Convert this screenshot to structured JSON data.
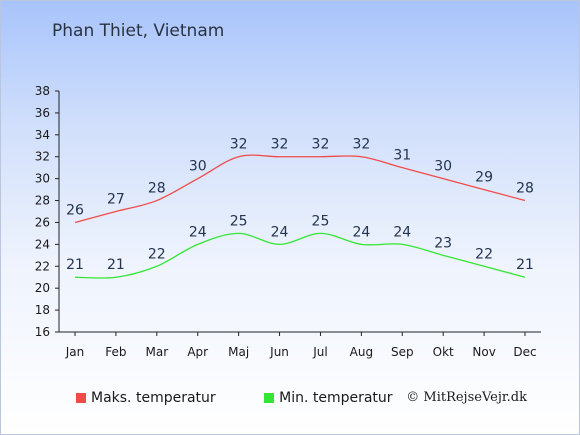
{
  "chart_data": {
    "type": "line",
    "title": "Phan Thiet, Vietnam",
    "categories": [
      "Jan",
      "Feb",
      "Mar",
      "Apr",
      "Maj",
      "Jun",
      "Jul",
      "Aug",
      "Sep",
      "Okt",
      "Nov",
      "Dec"
    ],
    "ylim": [
      16,
      38
    ],
    "yticks": [
      16,
      18,
      20,
      22,
      24,
      26,
      28,
      30,
      32,
      34,
      36,
      38
    ],
    "grid": false,
    "legend_position": "bottom-left",
    "series": [
      {
        "name": "Maks. temperatur",
        "color": "#f04b4b",
        "values": [
          26,
          27,
          28,
          30,
          32,
          32,
          32,
          32,
          31,
          30,
          29,
          28
        ]
      },
      {
        "name": "Min. temperatur",
        "color": "#33e633",
        "values": [
          21,
          21,
          22,
          24,
          25,
          24,
          25,
          24,
          24,
          23,
          22,
          21
        ]
      }
    ]
  },
  "legend": {
    "max_label": "Maks. temperatur",
    "min_label": "Min. temperatur"
  },
  "credit": "© MitRejseVejr.dk"
}
